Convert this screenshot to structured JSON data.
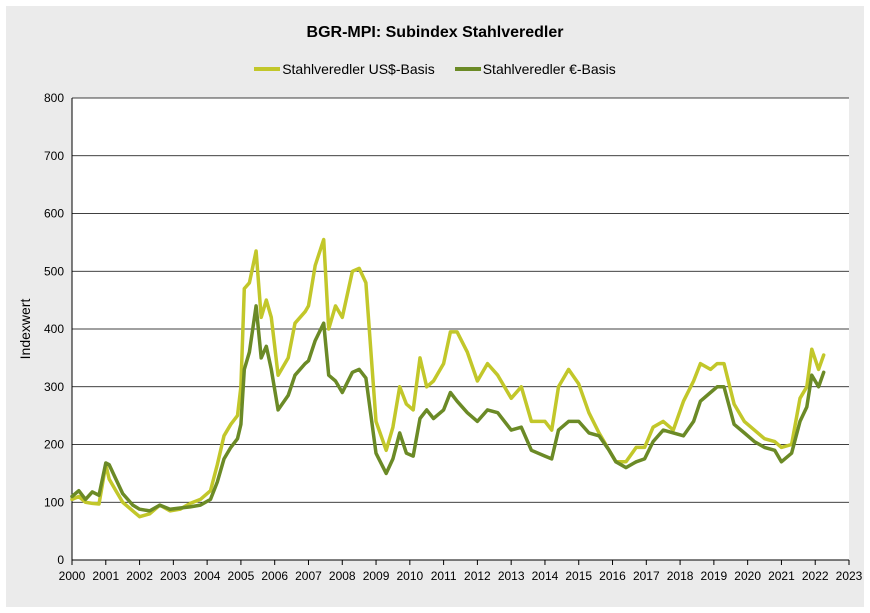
{
  "chart_data": {
    "type": "line",
    "title": "BGR-MPI:  Subindex Stahlveredler",
    "xlabel": "",
    "ylabel": "Indexwert",
    "ylim": [
      0,
      800
    ],
    "xlim": [
      2000,
      2023
    ],
    "yticks": [
      "0",
      "100",
      "200",
      "300",
      "400",
      "500",
      "600",
      "700",
      "800"
    ],
    "xticks": [
      "2000",
      "2001",
      "2002",
      "2003",
      "2004",
      "2005",
      "2006",
      "2007",
      "2008",
      "2009",
      "2010",
      "2011",
      "2012",
      "2013",
      "2014",
      "2015",
      "2016",
      "2017",
      "2018",
      "2019",
      "2020",
      "2021",
      "2022",
      "2023"
    ],
    "grid": "horizontal",
    "legend_position": "top",
    "series": [
      {
        "name": "Stahlveredler US$-Basis",
        "color": "#c2c72a",
        "x": [
          2000.0,
          2000.2,
          2000.4,
          2000.6,
          2000.8,
          2001.0,
          2001.1,
          2001.3,
          2001.5,
          2001.8,
          2002.0,
          2002.3,
          2002.6,
          2002.9,
          2003.2,
          2003.5,
          2003.8,
          2004.1,
          2004.3,
          2004.5,
          2004.7,
          2004.9,
          2005.0,
          2005.1,
          2005.25,
          2005.45,
          2005.6,
          2005.75,
          2005.9,
          2006.1,
          2006.4,
          2006.6,
          2006.9,
          2007.0,
          2007.2,
          2007.45,
          2007.6,
          2007.8,
          2008.0,
          2008.3,
          2008.5,
          2008.7,
          2009.0,
          2009.3,
          2009.5,
          2009.7,
          2009.9,
          2010.1,
          2010.3,
          2010.5,
          2010.7,
          2011.0,
          2011.2,
          2011.4,
          2011.7,
          2012.0,
          2012.3,
          2012.6,
          2013.0,
          2013.3,
          2013.6,
          2014.0,
          2014.2,
          2014.4,
          2014.7,
          2015.0,
          2015.3,
          2015.6,
          2015.9,
          2016.1,
          2016.4,
          2016.7,
          2016.95,
          2017.2,
          2017.5,
          2017.8,
          2018.1,
          2018.4,
          2018.6,
          2018.9,
          2019.1,
          2019.3,
          2019.6,
          2019.9,
          2020.2,
          2020.5,
          2020.8,
          2021.0,
          2021.3,
          2021.55,
          2021.75,
          2021.9,
          2022.1,
          2022.25
        ],
        "values": [
          105,
          110,
          100,
          98,
          97,
          165,
          140,
          120,
          100,
          85,
          75,
          80,
          95,
          85,
          88,
          98,
          105,
          120,
          165,
          215,
          235,
          250,
          300,
          470,
          480,
          535,
          420,
          450,
          420,
          320,
          350,
          410,
          430,
          440,
          510,
          555,
          400,
          440,
          420,
          500,
          505,
          480,
          240,
          190,
          230,
          300,
          270,
          260,
          350,
          300,
          310,
          340,
          395,
          395,
          360,
          310,
          340,
          320,
          280,
          300,
          240,
          240,
          225,
          300,
          330,
          305,
          255,
          220,
          190,
          170,
          170,
          195,
          195,
          230,
          240,
          225,
          275,
          310,
          340,
          330,
          340,
          340,
          270,
          240,
          225,
          210,
          205,
          195,
          200,
          280,
          300,
          365,
          330,
          355
        ]
      },
      {
        "name": "Stahlveredler €-Basis",
        "color": "#6b8a26",
        "x": [
          2000.0,
          2000.2,
          2000.4,
          2000.6,
          2000.8,
          2001.0,
          2001.1,
          2001.3,
          2001.5,
          2001.8,
          2002.0,
          2002.3,
          2002.6,
          2002.9,
          2003.2,
          2003.5,
          2003.8,
          2004.1,
          2004.3,
          2004.5,
          2004.7,
          2004.9,
          2005.0,
          2005.1,
          2005.25,
          2005.45,
          2005.6,
          2005.75,
          2005.9,
          2006.1,
          2006.4,
          2006.6,
          2006.9,
          2007.0,
          2007.2,
          2007.45,
          2007.6,
          2007.8,
          2008.0,
          2008.3,
          2008.5,
          2008.7,
          2009.0,
          2009.3,
          2009.5,
          2009.7,
          2009.9,
          2010.1,
          2010.3,
          2010.5,
          2010.7,
          2011.0,
          2011.2,
          2011.4,
          2011.7,
          2012.0,
          2012.3,
          2012.6,
          2013.0,
          2013.3,
          2013.6,
          2014.0,
          2014.2,
          2014.4,
          2014.7,
          2015.0,
          2015.3,
          2015.6,
          2015.9,
          2016.1,
          2016.4,
          2016.7,
          2016.95,
          2017.2,
          2017.5,
          2017.8,
          2018.1,
          2018.4,
          2018.6,
          2018.9,
          2019.1,
          2019.3,
          2019.6,
          2019.9,
          2020.2,
          2020.5,
          2020.8,
          2021.0,
          2021.3,
          2021.55,
          2021.75,
          2021.9,
          2022.1,
          2022.25
        ],
        "values": [
          110,
          120,
          105,
          118,
          112,
          168,
          165,
          140,
          115,
          95,
          88,
          85,
          95,
          88,
          90,
          92,
          95,
          105,
          135,
          175,
          195,
          210,
          235,
          330,
          360,
          440,
          350,
          370,
          330,
          260,
          285,
          320,
          340,
          345,
          380,
          410,
          320,
          310,
          290,
          325,
          330,
          315,
          185,
          150,
          175,
          220,
          185,
          180,
          245,
          260,
          245,
          260,
          290,
          275,
          255,
          240,
          260,
          255,
          225,
          230,
          190,
          180,
          175,
          225,
          240,
          240,
          220,
          215,
          190,
          170,
          160,
          170,
          175,
          205,
          225,
          220,
          215,
          240,
          275,
          290,
          300,
          300,
          235,
          220,
          205,
          195,
          190,
          170,
          185,
          240,
          265,
          320,
          300,
          325
        ]
      }
    ]
  }
}
